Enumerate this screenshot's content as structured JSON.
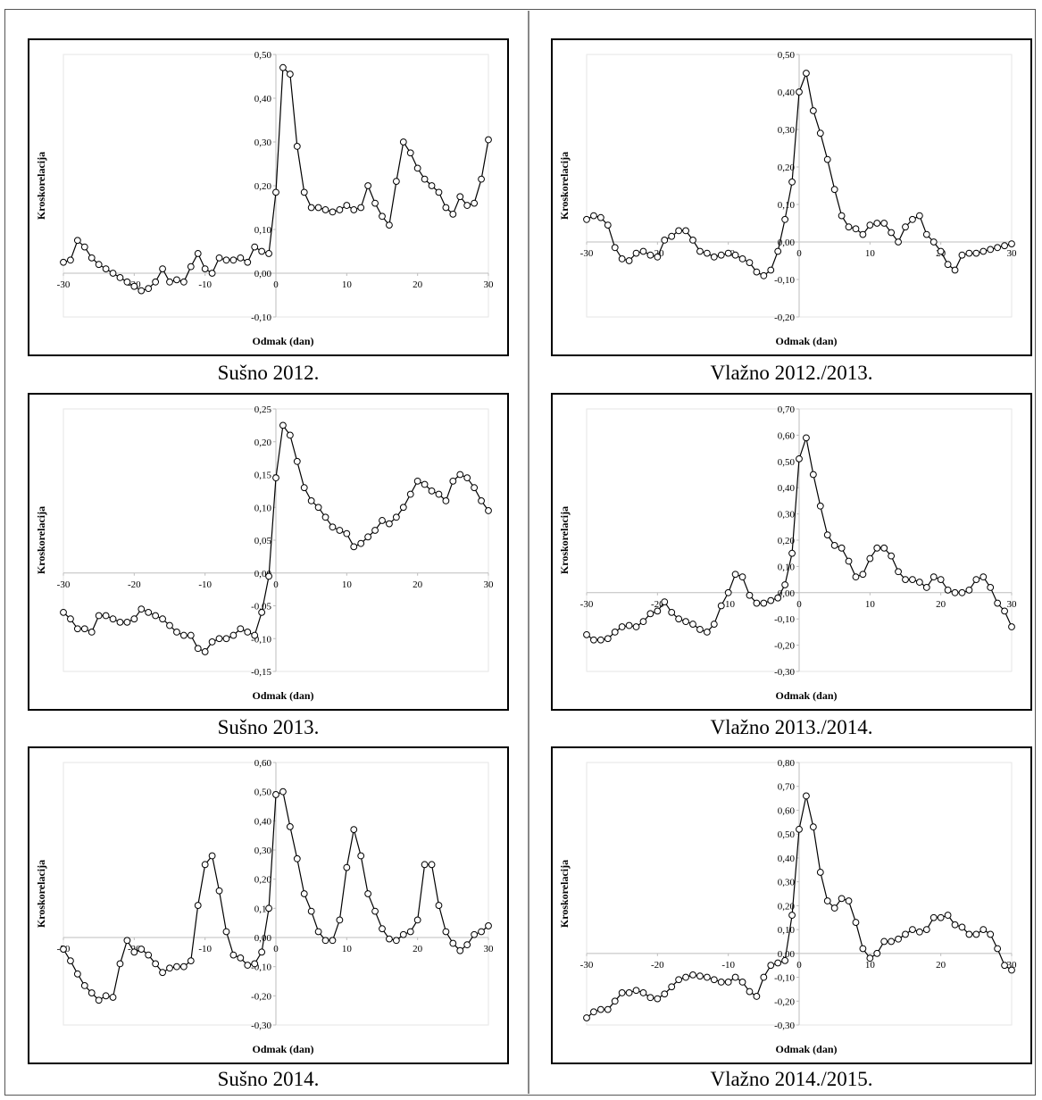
{
  "chart_data": [
    {
      "type": "line",
      "caption": "Sušno 2012.",
      "xlabel": "Odmak (dan)",
      "ylabel": "Kroskorelacija",
      "xlim": [
        -30,
        30
      ],
      "ylim": [
        -0.1,
        0.5
      ],
      "xticks": [
        "-30",
        "-20",
        "-10",
        "0",
        "10",
        "20",
        "30"
      ],
      "yticks": [
        "-0,10",
        "0,00",
        "0,10",
        "0,20",
        "0,30",
        "0,40",
        "0,50"
      ],
      "x": [
        -30,
        -29,
        -28,
        -27,
        -26,
        -25,
        -24,
        -23,
        -22,
        -21,
        -20,
        -19,
        -18,
        -17,
        -16,
        -15,
        -14,
        -13,
        -12,
        -11,
        -10,
        -9,
        -8,
        -7,
        -6,
        -5,
        -4,
        -3,
        -2,
        -1,
        0,
        1,
        2,
        3,
        4,
        5,
        6,
        7,
        8,
        9,
        10,
        11,
        12,
        13,
        14,
        15,
        16,
        17,
        18,
        19,
        20,
        21,
        22,
        23,
        24,
        25,
        26,
        27,
        28,
        29,
        30
      ],
      "values": [
        0.025,
        0.03,
        0.075,
        0.06,
        0.035,
        0.02,
        0.01,
        0.0,
        -0.01,
        -0.02,
        -0.03,
        -0.04,
        -0.035,
        -0.02,
        0.01,
        -0.02,
        -0.015,
        -0.02,
        0.015,
        0.045,
        0.01,
        0.0,
        0.035,
        0.03,
        0.03,
        0.035,
        0.025,
        0.06,
        0.05,
        0.045,
        0.185,
        0.47,
        0.455,
        0.29,
        0.185,
        0.15,
        0.15,
        0.145,
        0.14,
        0.145,
        0.155,
        0.145,
        0.15,
        0.2,
        0.16,
        0.13,
        0.11,
        0.21,
        0.3,
        0.275,
        0.24,
        0.215,
        0.2,
        0.185,
        0.15,
        0.135,
        0.175,
        0.155,
        0.16,
        0.215,
        0.305
      ]
    },
    {
      "type": "line",
      "caption": "Vlažno 2012./2013.",
      "xlabel": "Odmak (dan)",
      "ylabel": "Kroskorelacija",
      "xlim": [
        -30,
        30
      ],
      "ylim": [
        -0.2,
        0.5
      ],
      "xticks": [
        "-30",
        "-20",
        "-10",
        "0",
        "10",
        "20",
        "30"
      ],
      "yticks": [
        "-0,20",
        "-0,10",
        "0,00",
        "0,10",
        "0,20",
        "0,30",
        "0,40",
        "0,50"
      ],
      "x": [
        -30,
        -29,
        -28,
        -27,
        -26,
        -25,
        -24,
        -23,
        -22,
        -21,
        -20,
        -19,
        -18,
        -17,
        -16,
        -15,
        -14,
        -13,
        -12,
        -11,
        -10,
        -9,
        -8,
        -7,
        -6,
        -5,
        -4,
        -3,
        -2,
        -1,
        0,
        1,
        2,
        3,
        4,
        5,
        6,
        7,
        8,
        9,
        10,
        11,
        12,
        13,
        14,
        15,
        16,
        17,
        18,
        19,
        20,
        21,
        22,
        23,
        24,
        25,
        26,
        27,
        28,
        29,
        30
      ],
      "values": [
        0.06,
        0.07,
        0.065,
        0.045,
        -0.015,
        -0.045,
        -0.05,
        -0.03,
        -0.025,
        -0.035,
        -0.04,
        0.005,
        0.015,
        0.03,
        0.03,
        0.005,
        -0.025,
        -0.03,
        -0.04,
        -0.035,
        -0.03,
        -0.035,
        -0.045,
        -0.055,
        -0.08,
        -0.09,
        -0.075,
        -0.025,
        0.06,
        0.16,
        0.4,
        0.45,
        0.35,
        0.29,
        0.22,
        0.14,
        0.07,
        0.04,
        0.035,
        0.02,
        0.045,
        0.05,
        0.05,
        0.025,
        0.0,
        0.04,
        0.06,
        0.07,
        0.02,
        0.0,
        -0.025,
        -0.06,
        -0.075,
        -0.035,
        -0.03,
        -0.03,
        -0.025,
        -0.02,
        -0.015,
        -0.01,
        -0.005
      ]
    },
    {
      "type": "line",
      "caption": "Sušno 2013.",
      "xlabel": "Odmak (dan)",
      "ylabel": "Kroskorelacija",
      "xlim": [
        -30,
        30
      ],
      "ylim": [
        -0.15,
        0.25
      ],
      "xticks": [
        "-30",
        "-20",
        "-10",
        "0",
        "10",
        "20",
        "30"
      ],
      "yticks": [
        "-0,15",
        "-0,10",
        "-0,05",
        "0,00",
        "0,05",
        "0,10",
        "0,15",
        "0,20",
        "0,25"
      ],
      "x": [
        -30,
        -29,
        -28,
        -27,
        -26,
        -25,
        -24,
        -23,
        -22,
        -21,
        -20,
        -19,
        -18,
        -17,
        -16,
        -15,
        -14,
        -13,
        -12,
        -11,
        -10,
        -9,
        -8,
        -7,
        -6,
        -5,
        -4,
        -3,
        -2,
        -1,
        0,
        1,
        2,
        3,
        4,
        5,
        6,
        7,
        8,
        9,
        10,
        11,
        12,
        13,
        14,
        15,
        16,
        17,
        18,
        19,
        20,
        21,
        22,
        23,
        24,
        25,
        26,
        27,
        28,
        29,
        30
      ],
      "values": [
        -0.06,
        -0.07,
        -0.085,
        -0.085,
        -0.09,
        -0.065,
        -0.065,
        -0.07,
        -0.075,
        -0.075,
        -0.07,
        -0.055,
        -0.06,
        -0.065,
        -0.07,
        -0.08,
        -0.09,
        -0.095,
        -0.095,
        -0.115,
        -0.12,
        -0.105,
        -0.1,
        -0.1,
        -0.095,
        -0.085,
        -0.09,
        -0.095,
        -0.06,
        -0.005,
        0.145,
        0.225,
        0.21,
        0.17,
        0.13,
        0.11,
        0.1,
        0.085,
        0.07,
        0.065,
        0.06,
        0.04,
        0.045,
        0.055,
        0.065,
        0.08,
        0.075,
        0.085,
        0.1,
        0.12,
        0.14,
        0.135,
        0.125,
        0.12,
        0.11,
        0.14,
        0.15,
        0.145,
        0.13,
        0.11,
        0.095
      ]
    },
    {
      "type": "line",
      "caption": "Vlažno 2013./2014.",
      "xlabel": "Odmak (dan)",
      "ylabel": "Kroskorelacija",
      "xlim": [
        -30,
        30
      ],
      "ylim": [
        -0.3,
        0.7
      ],
      "xticks": [
        "-30",
        "-20",
        "-10",
        "0",
        "10",
        "20",
        "30"
      ],
      "yticks": [
        "-0,30",
        "-0,20",
        "-0,10",
        "0,00",
        "0,10",
        "0,20",
        "0,30",
        "0,40",
        "0,50",
        "0,60",
        "0,70"
      ],
      "x": [
        -30,
        -29,
        -28,
        -27,
        -26,
        -25,
        -24,
        -23,
        -22,
        -21,
        -20,
        -19,
        -18,
        -17,
        -16,
        -15,
        -14,
        -13,
        -12,
        -11,
        -10,
        -9,
        -8,
        -7,
        -6,
        -5,
        -4,
        -3,
        -2,
        -1,
        0,
        1,
        2,
        3,
        4,
        5,
        6,
        7,
        8,
        9,
        10,
        11,
        12,
        13,
        14,
        15,
        16,
        17,
        18,
        19,
        20,
        21,
        22,
        23,
        24,
        25,
        26,
        27,
        28,
        29,
        30
      ],
      "values": [
        -0.16,
        -0.18,
        -0.18,
        -0.175,
        -0.15,
        -0.13,
        -0.125,
        -0.13,
        -0.11,
        -0.08,
        -0.07,
        -0.035,
        -0.075,
        -0.1,
        -0.11,
        -0.12,
        -0.14,
        -0.15,
        -0.12,
        -0.05,
        0.0,
        0.07,
        0.06,
        -0.01,
        -0.04,
        -0.04,
        -0.03,
        -0.02,
        0.03,
        0.15,
        0.51,
        0.59,
        0.45,
        0.33,
        0.22,
        0.18,
        0.17,
        0.12,
        0.06,
        0.07,
        0.13,
        0.17,
        0.17,
        0.14,
        0.08,
        0.05,
        0.05,
        0.04,
        0.02,
        0.06,
        0.05,
        0.01,
        0.0,
        0.0,
        0.01,
        0.05,
        0.06,
        0.02,
        -0.04,
        -0.07,
        -0.13
      ]
    },
    {
      "type": "line",
      "caption": "Sušno 2014.",
      "xlabel": "Odmak (dan)",
      "ylabel": "Kroskorelacija",
      "xlim": [
        -30,
        30
      ],
      "ylim": [
        -0.3,
        0.6
      ],
      "xticks": [
        "-30",
        "-20",
        "-10",
        "0",
        "10",
        "20",
        "30"
      ],
      "yticks": [
        "-0,30",
        "-0,20",
        "-0,10",
        "0,00",
        "0,10",
        "0,20",
        "0,30",
        "0,40",
        "0,50",
        "0,60"
      ],
      "x": [
        -30,
        -29,
        -28,
        -27,
        -26,
        -25,
        -24,
        -23,
        -22,
        -21,
        -20,
        -19,
        -18,
        -17,
        -16,
        -15,
        -14,
        -13,
        -12,
        -11,
        -10,
        -9,
        -8,
        -7,
        -6,
        -5,
        -4,
        -3,
        -2,
        -1,
        0,
        1,
        2,
        3,
        4,
        5,
        6,
        7,
        8,
        9,
        10,
        11,
        12,
        13,
        14,
        15,
        16,
        17,
        18,
        19,
        20,
        21,
        22,
        23,
        24,
        25,
        26,
        27,
        28,
        29,
        30
      ],
      "values": [
        -0.04,
        -0.08,
        -0.125,
        -0.165,
        -0.19,
        -0.215,
        -0.2,
        -0.205,
        -0.09,
        -0.01,
        -0.05,
        -0.04,
        -0.06,
        -0.09,
        -0.12,
        -0.105,
        -0.1,
        -0.1,
        -0.08,
        0.11,
        0.25,
        0.28,
        0.16,
        0.02,
        -0.06,
        -0.07,
        -0.095,
        -0.09,
        -0.05,
        0.1,
        0.49,
        0.5,
        0.38,
        0.27,
        0.15,
        0.09,
        0.02,
        -0.01,
        -0.01,
        0.06,
        0.24,
        0.37,
        0.28,
        0.15,
        0.09,
        0.03,
        -0.005,
        -0.01,
        0.01,
        0.02,
        0.06,
        0.25,
        0.25,
        0.11,
        0.02,
        -0.02,
        -0.045,
        -0.025,
        0.01,
        0.02,
        0.04
      ]
    },
    {
      "type": "line",
      "caption": "Vlažno 2014./2015.",
      "xlabel": "Odmak (dan)",
      "ylabel": "Kroskorelacija",
      "xlim": [
        -30,
        30
      ],
      "ylim": [
        -0.3,
        0.8
      ],
      "xticks": [
        "-30",
        "-20",
        "-10",
        "0",
        "10",
        "20",
        "30"
      ],
      "yticks": [
        "-0,30",
        "-0,20",
        "-0,10",
        "0,00",
        "0,10",
        "0,20",
        "0,30",
        "0,40",
        "0,50",
        "0,60",
        "0,70",
        "0,80"
      ],
      "x": [
        -30,
        -29,
        -28,
        -27,
        -26,
        -25,
        -24,
        -23,
        -22,
        -21,
        -20,
        -19,
        -18,
        -17,
        -16,
        -15,
        -14,
        -13,
        -12,
        -11,
        -10,
        -9,
        -8,
        -7,
        -6,
        -5,
        -4,
        -3,
        -2,
        -1,
        0,
        1,
        2,
        3,
        4,
        5,
        6,
        7,
        8,
        9,
        10,
        11,
        12,
        13,
        14,
        15,
        16,
        17,
        18,
        19,
        20,
        21,
        22,
        23,
        24,
        25,
        26,
        27,
        28,
        29,
        30
      ],
      "values": [
        -0.27,
        -0.245,
        -0.235,
        -0.235,
        -0.2,
        -0.165,
        -0.165,
        -0.155,
        -0.165,
        -0.185,
        -0.19,
        -0.17,
        -0.14,
        -0.11,
        -0.1,
        -0.09,
        -0.095,
        -0.1,
        -0.11,
        -0.12,
        -0.12,
        -0.1,
        -0.12,
        -0.16,
        -0.18,
        -0.1,
        -0.05,
        -0.04,
        -0.03,
        0.16,
        0.52,
        0.66,
        0.53,
        0.34,
        0.22,
        0.19,
        0.23,
        0.22,
        0.13,
        0.02,
        -0.02,
        0.0,
        0.05,
        0.05,
        0.06,
        0.08,
        0.1,
        0.09,
        0.1,
        0.15,
        0.15,
        0.16,
        0.12,
        0.11,
        0.08,
        0.08,
        0.1,
        0.08,
        0.02,
        -0.05,
        -0.07
      ]
    }
  ]
}
